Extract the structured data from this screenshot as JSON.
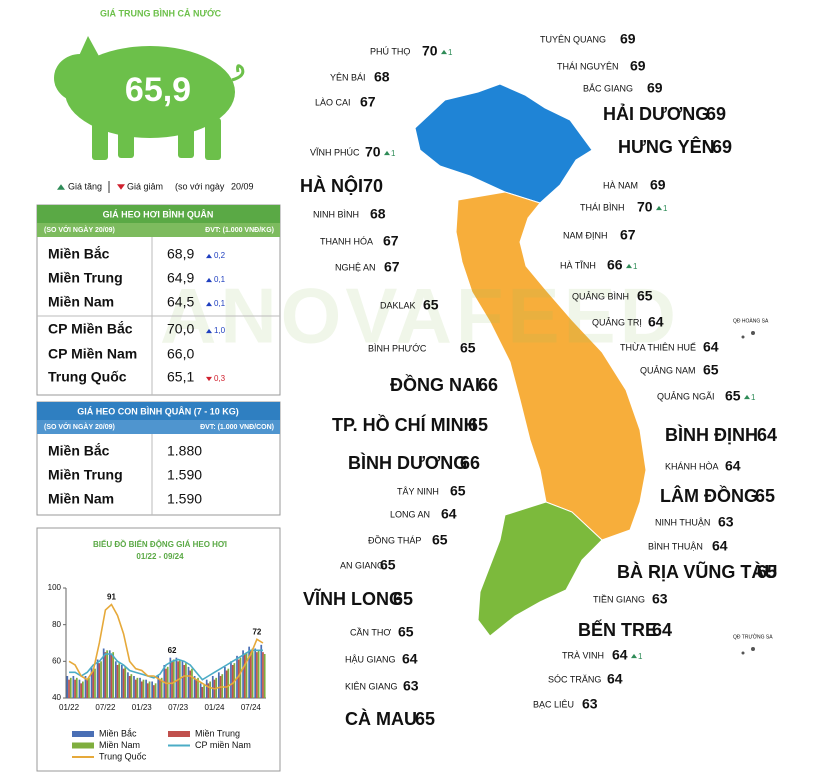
{
  "header": {
    "title": "GIÁ TRUNG BÌNH CẢ NƯỚC",
    "average": "65,9"
  },
  "legend": {
    "up": "Giá tăng",
    "down": "Giá giảm",
    "compare": "(so với ngày",
    "date": "20/09"
  },
  "tables": [
    {
      "title": "GIÁ HEO HƠI BÌNH QUÂN",
      "note": "(SO VỚI NGÀY 20/09)",
      "unit": "ĐVT: (1.000 VNĐ/KG)",
      "rows": [
        {
          "name": "Miền Bắc",
          "value": "68,9",
          "change": "0,2",
          "trend": "up"
        },
        {
          "name": "Miền Trung",
          "value": "64,9",
          "change": "0,1",
          "trend": "up"
        },
        {
          "name": "Miền Nam",
          "value": "64,5",
          "change": "0,1",
          "trend": "up"
        },
        {
          "name": "CP Miền Bắc",
          "value": "70,0",
          "change": "1,0",
          "trend": "up"
        },
        {
          "name": "CP Miền Nam",
          "value": "66,0"
        },
        {
          "name": "Trung Quốc",
          "value": "65,1",
          "change": "0,3",
          "trend": "down"
        }
      ]
    },
    {
      "title": "GIÁ HEO CON BÌNH QUÂN (7 - 10 KG)",
      "note": "(SO VỚI NGÀY 20/09)",
      "unit": "ĐVT: (1.000 VNĐ/CON)",
      "rows": [
        {
          "name": "Miền Bắc",
          "value": "1.880"
        },
        {
          "name": "Miền Trung",
          "value": "1.590"
        },
        {
          "name": "Miền Nam",
          "value": "1.590"
        }
      ]
    }
  ],
  "chart_data": {
    "type": "bar",
    "title": "BIỂU ĐỒ BIẾN ĐỘNG GIÁ HEO HƠI",
    "subtitle": "01/22 - 09/24",
    "categories": [
      "01/22",
      null,
      null,
      null,
      null,
      null,
      "07/22",
      null,
      null,
      null,
      null,
      null,
      "01/23",
      null,
      null,
      null,
      null,
      null,
      "07/23",
      null,
      null,
      null,
      null,
      null,
      "01/24",
      null,
      null,
      null,
      null,
      null,
      "07/24",
      null,
      null
    ],
    "series": [
      {
        "name": "Miền Bắc",
        "color": "#4a6fb5",
        "values": [
          52,
          52,
          50,
          52,
          57,
          61,
          67,
          66,
          60,
          58,
          54,
          52,
          51,
          50,
          49,
          52,
          58,
          62,
          62,
          60,
          57,
          52,
          48,
          50,
          52,
          54,
          57,
          60,
          63,
          66,
          68,
          67,
          69
        ]
      },
      {
        "name": "Miền Trung",
        "color": "#c0504d",
        "values": [
          50,
          50,
          48,
          50,
          55,
          59,
          65,
          64,
          58,
          56,
          52,
          50,
          49,
          48,
          47,
          50,
          56,
          60,
          60,
          58,
          55,
          50,
          46,
          48,
          50,
          52,
          55,
          58,
          61,
          64,
          66,
          65,
          65
        ]
      },
      {
        "name": "Miền Nam",
        "color": "#7fae3e",
        "values": [
          51,
          51,
          49,
          51,
          56,
          60,
          66,
          65,
          59,
          57,
          53,
          51,
          50,
          49,
          48,
          51,
          57,
          61,
          61,
          59,
          56,
          51,
          47,
          49,
          51,
          53,
          56,
          59,
          62,
          65,
          67,
          66,
          64
        ]
      },
      {
        "name": "CP miền Nam",
        "color": "#4bacc6",
        "type": "line",
        "values": [
          54,
          54,
          52,
          54,
          58,
          60,
          64,
          64,
          60,
          58,
          55,
          54,
          53,
          52,
          51,
          53,
          58,
          60,
          61,
          60,
          58,
          54,
          50,
          52,
          54,
          56,
          58,
          60,
          62,
          64,
          66,
          66,
          66
        ]
      },
      {
        "name": "Trung Quốc",
        "color": "#e6a93a",
        "type": "line",
        "values": [
          60,
          58,
          52,
          50,
          55,
          70,
          88,
          91,
          85,
          75,
          60,
          56,
          55,
          52,
          52,
          50,
          48,
          48,
          50,
          52,
          52,
          50,
          48,
          46,
          45,
          46,
          46,
          48,
          52,
          58,
          64,
          72,
          70
        ]
      }
    ],
    "annotations": [
      91,
      62,
      72
    ],
    "ylim": [
      40,
      100
    ],
    "yticks": [
      40,
      60,
      80,
      100
    ]
  },
  "map": {
    "watermark": "ANOVAFEED",
    "islands": [
      "QĐ HOÀNG SA",
      "QĐ TRƯỜNG SA"
    ],
    "provinces": [
      {
        "name": "PHÚ THỌ",
        "value": 70,
        "change": 1
      },
      {
        "name": "TUYÊN QUANG",
        "value": 69
      },
      {
        "name": "YÊN BÁI",
        "value": 68
      },
      {
        "name": "THÁI NGUYÊN",
        "value": 69
      },
      {
        "name": "LÀO CAI",
        "value": 67
      },
      {
        "name": "BẮC GIANG",
        "value": 69
      },
      {
        "name": "HẢI DƯƠNG",
        "value": 69
      },
      {
        "name": "VĨNH PHÚC",
        "value": 70,
        "change": 1
      },
      {
        "name": "HƯNG YÊN",
        "value": 69
      },
      {
        "name": "HÀ NỘI",
        "value": 70
      },
      {
        "name": "HÀ NAM",
        "value": 69
      },
      {
        "name": "THÁI BÌNH",
        "value": 70,
        "change": 1
      },
      {
        "name": "NINH BÌNH",
        "value": 68
      },
      {
        "name": "NAM ĐỊNH",
        "value": 67
      },
      {
        "name": "THANH HÓA",
        "value": 67
      },
      {
        "name": "HÀ TĨNH",
        "value": 66,
        "change": 1
      },
      {
        "name": "NGHỆ AN",
        "value": 67
      },
      {
        "name": "QUẢNG BÌNH",
        "value": 65
      },
      {
        "name": "DAKLAK",
        "value": 65
      },
      {
        "name": "QUẢNG TRỊ",
        "value": 64
      },
      {
        "name": "BÌNH PHƯỚC",
        "value": 65
      },
      {
        "name": "THỪA THIÊN HUẾ",
        "value": 64
      },
      {
        "name": "QUẢNG NAM",
        "value": 65
      },
      {
        "name": "ĐỒNG NAI",
        "value": 66
      },
      {
        "name": "QUẢNG NGÃI",
        "value": 65,
        "change": 1
      },
      {
        "name": "TP. HỒ CHÍ MINH",
        "value": 65
      },
      {
        "name": "BÌNH ĐỊNH",
        "value": 64
      },
      {
        "name": "BÌNH DƯƠNG",
        "value": 66
      },
      {
        "name": "KHÁNH HÒA",
        "value": 64
      },
      {
        "name": "TÂY NINH",
        "value": 65
      },
      {
        "name": "LÂM ĐỒNG",
        "value": 65
      },
      {
        "name": "LONG AN",
        "value": 64
      },
      {
        "name": "NINH THUẬN",
        "value": 63
      },
      {
        "name": "ĐỒNG THÁP",
        "value": 65
      },
      {
        "name": "BÌNH THUẬN",
        "value": 64
      },
      {
        "name": "AN GIANG",
        "value": 65
      },
      {
        "name": "BÀ RỊA VŨNG TÀU",
        "value": 65
      },
      {
        "name": "VĨNH LONG",
        "value": 65
      },
      {
        "name": "TIỀN GIANG",
        "value": 63
      },
      {
        "name": "BẾN TRE",
        "value": 64
      },
      {
        "name": "CẦN THƠ",
        "value": 65
      },
      {
        "name": "TRÀ VINH",
        "value": 64,
        "change": 1
      },
      {
        "name": "HẬU GIANG",
        "value": 64
      },
      {
        "name": "SÓC TRĂNG",
        "value": 64
      },
      {
        "name": "KIÊN GIANG",
        "value": 63
      },
      {
        "name": "BẠC LIÊU",
        "value": 63
      },
      {
        "name": "CÀ MAU",
        "value": 65
      }
    ]
  }
}
